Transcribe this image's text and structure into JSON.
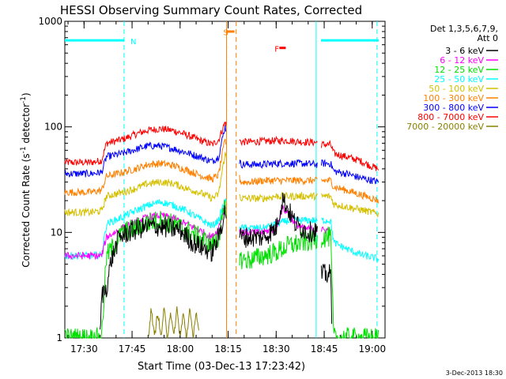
{
  "chart_data": {
    "type": "line",
    "title": "HESSI Observing Summary Count Rates, Corrected",
    "ylabel_main": "Corrected Count Rate (s",
    "ylabel_sup1": "-1",
    "ylabel_mid": " detector",
    "ylabel_sup2": "-1",
    "ylabel_end": ")",
    "xlabel": "Start Time (03-Dec-13 17:23:42)",
    "yscale": "log",
    "ylim": [
      1,
      1000
    ],
    "y_ticks": [
      {
        "v": 1,
        "label": "1"
      },
      {
        "v": 10,
        "label": "10"
      },
      {
        "v": 100,
        "label": "100"
      },
      {
        "v": 1000,
        "label": "1000"
      }
    ],
    "xlim_minutes": [
      1044,
      1144
    ],
    "x_ticks": [
      {
        "min": 1050,
        "label": "17:30"
      },
      {
        "min": 1065,
        "label": "17:45"
      },
      {
        "min": 1080,
        "label": "18:00"
      },
      {
        "min": 1095,
        "label": "18:15"
      },
      {
        "min": 1110,
        "label": "18:30"
      },
      {
        "min": 1125,
        "label": "18:45"
      },
      {
        "min": 1140,
        "label": "19:00"
      }
    ],
    "legend": {
      "header1": "Det 1,3,5,6,7,9,",
      "header2": "Att 0",
      "entries": [
        {
          "label": "3 - 6 keV",
          "color": "#000000"
        },
        {
          "label": "6 - 12 keV",
          "color": "#ff00ff"
        },
        {
          "label": "12 - 25 keV",
          "color": "#00e000"
        },
        {
          "label": "25 - 50 keV",
          "color": "#00ffff"
        },
        {
          "label": "50 - 100 keV",
          "color": "#d4c000"
        },
        {
          "label": "100 - 300 keV",
          "color": "#ff8000"
        },
        {
          "label": "300 - 800 keV",
          "color": "#0000ff"
        },
        {
          "label": "800 - 7000 keV",
          "color": "#ff0000"
        },
        {
          "label": "7000 - 20000 keV",
          "color": "#888000"
        }
      ]
    },
    "annotations": [
      {
        "text": "N",
        "min": 1064.5,
        "y": 650,
        "color": "#00ffff"
      },
      {
        "text": "S",
        "min": 1093.5,
        "y": 790,
        "color": "#ff8000"
      },
      {
        "text": "F",
        "min": 1109.5,
        "y": 550,
        "color": "#ff0000"
      }
    ],
    "orbit_flag": {
      "color": "#00ffff",
      "level": 660,
      "segments": [
        [
          1044,
          1062.5
        ],
        [
          1124,
          1142
        ]
      ],
      "night_bounds_solid": [
        1122.5
      ],
      "night_bounds_dashed": [
        1062.5,
        1141.5
      ]
    },
    "saa_flag": {
      "color": "#ff8000",
      "level": 800,
      "segment": [
        1094.5,
        1097
      ],
      "bounds_solid": [
        1094.5
      ],
      "bounds_dashed": [
        1097.5
      ]
    },
    "flare_flag": {
      "color": "#ff0000",
      "level": 560,
      "segment": [
        1111,
        1113
      ]
    },
    "gaps": [
      [
        1094.5,
        1098.5
      ],
      [
        1123,
        1124
      ]
    ],
    "series": [
      {
        "name": "800 - 7000 keV",
        "color": "#ff0000",
        "points": [
          [
            1044,
            46
          ],
          [
            1052,
            46
          ],
          [
            1054,
            47
          ],
          [
            1055.5,
            48
          ],
          [
            1057,
            70
          ],
          [
            1062,
            76
          ],
          [
            1066,
            85
          ],
          [
            1070,
            93
          ],
          [
            1074,
            96
          ],
          [
            1078,
            92
          ],
          [
            1082,
            84
          ],
          [
            1086,
            75
          ],
          [
            1090,
            68
          ],
          [
            1092,
            75
          ],
          [
            1094,
            110
          ],
          [
            1099,
            72
          ],
          [
            1102,
            72
          ],
          [
            1106,
            73
          ],
          [
            1110,
            74
          ],
          [
            1114,
            74
          ],
          [
            1118,
            72
          ],
          [
            1123,
            71
          ],
          [
            1124,
            68
          ],
          [
            1127,
            68
          ],
          [
            1128,
            56
          ],
          [
            1132,
            52
          ],
          [
            1136,
            48
          ],
          [
            1140,
            42
          ],
          [
            1142,
            40
          ]
        ]
      },
      {
        "name": "300 - 800 keV",
        "color": "#0000ff",
        "points": [
          [
            1044,
            36
          ],
          [
            1052,
            36
          ],
          [
            1055.5,
            37
          ],
          [
            1057,
            52
          ],
          [
            1062,
            56
          ],
          [
            1066,
            61
          ],
          [
            1070,
            66
          ],
          [
            1074,
            66
          ],
          [
            1078,
            62
          ],
          [
            1082,
            57
          ],
          [
            1086,
            52
          ],
          [
            1090,
            47
          ],
          [
            1092,
            52
          ],
          [
            1094,
            100
          ],
          [
            1099,
            44
          ],
          [
            1102,
            44
          ],
          [
            1106,
            44
          ],
          [
            1110,
            45
          ],
          [
            1114,
            45
          ],
          [
            1118,
            45
          ],
          [
            1123,
            44
          ],
          [
            1124,
            45
          ],
          [
            1127,
            45
          ],
          [
            1128,
            38
          ],
          [
            1132,
            36
          ],
          [
            1136,
            33
          ],
          [
            1140,
            31
          ],
          [
            1142,
            30
          ]
        ]
      },
      {
        "name": "100 - 300 keV",
        "color": "#ff8000",
        "points": [
          [
            1044,
            24
          ],
          [
            1052,
            24
          ],
          [
            1055.5,
            25
          ],
          [
            1057,
            34
          ],
          [
            1062,
            37
          ],
          [
            1066,
            40
          ],
          [
            1070,
            44
          ],
          [
            1074,
            45
          ],
          [
            1078,
            43
          ],
          [
            1082,
            39
          ],
          [
            1086,
            35
          ],
          [
            1090,
            32
          ],
          [
            1092,
            35
          ],
          [
            1094,
            75
          ],
          [
            1099,
            30
          ],
          [
            1102,
            30
          ],
          [
            1106,
            31
          ],
          [
            1110,
            31
          ],
          [
            1114,
            31
          ],
          [
            1118,
            31
          ],
          [
            1123,
            31
          ],
          [
            1124,
            31
          ],
          [
            1127,
            31
          ],
          [
            1128,
            27
          ],
          [
            1132,
            25
          ],
          [
            1136,
            23
          ],
          [
            1140,
            21
          ],
          [
            1142,
            20
          ]
        ]
      },
      {
        "name": "50 - 100 keV",
        "color": "#d4c000",
        "points": [
          [
            1044,
            15.5
          ],
          [
            1052,
            15.5
          ],
          [
            1055.5,
            16
          ],
          [
            1057,
            22
          ],
          [
            1062,
            24
          ],
          [
            1066,
            26
          ],
          [
            1070,
            29
          ],
          [
            1074,
            30
          ],
          [
            1078,
            29
          ],
          [
            1082,
            26
          ],
          [
            1086,
            24
          ],
          [
            1090,
            21
          ],
          [
            1092,
            23
          ],
          [
            1094,
            55
          ],
          [
            1099,
            21
          ],
          [
            1102,
            21
          ],
          [
            1106,
            21
          ],
          [
            1110,
            22
          ],
          [
            1114,
            22
          ],
          [
            1118,
            22
          ],
          [
            1123,
            22
          ],
          [
            1124,
            22
          ],
          [
            1127,
            22
          ],
          [
            1128,
            18.5
          ],
          [
            1132,
            17.5
          ],
          [
            1136,
            16.5
          ],
          [
            1140,
            15.5
          ],
          [
            1142,
            15
          ]
        ]
      },
      {
        "name": "25 - 50 keV",
        "color": "#00ffff",
        "points": [
          [
            1044,
            6
          ],
          [
            1052,
            6
          ],
          [
            1055.5,
            6.1
          ],
          [
            1057,
            12
          ],
          [
            1062,
            14
          ],
          [
            1066,
            16
          ],
          [
            1070,
            18
          ],
          [
            1074,
            19.5
          ],
          [
            1078,
            18
          ],
          [
            1082,
            16
          ],
          [
            1086,
            13.5
          ],
          [
            1090,
            11.5
          ],
          [
            1092,
            13
          ],
          [
            1094,
            20
          ],
          [
            1099,
            11
          ],
          [
            1102,
            11
          ],
          [
            1106,
            11
          ],
          [
            1110,
            12
          ],
          [
            1114,
            13
          ],
          [
            1118,
            13
          ],
          [
            1123,
            13
          ],
          [
            1124,
            13
          ],
          [
            1127,
            13
          ],
          [
            1128,
            8
          ],
          [
            1132,
            7
          ],
          [
            1136,
            6.2
          ],
          [
            1140,
            5.8
          ],
          [
            1142,
            5.6
          ]
        ]
      },
      {
        "name": "6 - 12 keV",
        "color": "#ff00ff",
        "points": [
          [
            1044,
            6
          ],
          [
            1052,
            6
          ],
          [
            1055.5,
            6
          ],
          [
            1057,
            9
          ],
          [
            1062,
            11
          ],
          [
            1066,
            12.5
          ],
          [
            1070,
            14
          ],
          [
            1074,
            14.5
          ],
          [
            1078,
            13.5
          ],
          [
            1082,
            12
          ],
          [
            1086,
            10.5
          ],
          [
            1090,
            9
          ],
          [
            1092,
            11
          ],
          [
            1094,
            18
          ],
          [
            1099,
            10
          ],
          [
            1102,
            10
          ],
          [
            1106,
            10
          ],
          [
            1110,
            11
          ],
          [
            1112,
            17
          ],
          [
            1114,
            15
          ],
          [
            1116,
            12
          ],
          [
            1118,
            11
          ],
          [
            1123,
            10.5
          ],
          [
            1124,
            10.5
          ],
          [
            1127,
            10.5
          ]
        ]
      },
      {
        "name": "12 - 25 keV",
        "color": "#00e000",
        "points": [
          [
            1044,
            1
          ],
          [
            1052,
            1
          ],
          [
            1055.5,
            1
          ],
          [
            1057,
            6
          ],
          [
            1060,
            8
          ],
          [
            1062,
            10
          ],
          [
            1066,
            11
          ],
          [
            1070,
            12.5
          ],
          [
            1074,
            13
          ],
          [
            1078,
            12
          ],
          [
            1082,
            10.5
          ],
          [
            1086,
            9
          ],
          [
            1090,
            7.5
          ],
          [
            1092,
            9
          ],
          [
            1094,
            17
          ],
          [
            1099,
            5.5
          ],
          [
            1102,
            5.5
          ],
          [
            1106,
            6
          ],
          [
            1110,
            6.5
          ],
          [
            1114,
            7.5
          ],
          [
            1118,
            8
          ],
          [
            1123,
            8.5
          ],
          [
            1124,
            9
          ],
          [
            1127,
            9
          ],
          [
            1128,
            1
          ],
          [
            1134,
            1
          ],
          [
            1142,
            1
          ]
        ]
      },
      {
        "name": "3 - 6 keV",
        "color": "#000000",
        "points": [
          [
            1055,
            1
          ],
          [
            1055.5,
            2.5
          ],
          [
            1057,
            3
          ],
          [
            1058.5,
            5.5
          ],
          [
            1061,
            9
          ],
          [
            1064,
            10
          ],
          [
            1068,
            11
          ],
          [
            1072,
            11.5
          ],
          [
            1076,
            11
          ],
          [
            1080,
            10.5
          ],
          [
            1084,
            8
          ],
          [
            1088,
            7
          ],
          [
            1090,
            6.5
          ],
          [
            1092,
            9
          ],
          [
            1094,
            16
          ],
          [
            1099,
            9
          ],
          [
            1102,
            9
          ],
          [
            1106,
            9
          ],
          [
            1110,
            11
          ],
          [
            1112,
            21
          ],
          [
            1114,
            16
          ],
          [
            1116,
            12
          ],
          [
            1118,
            11
          ],
          [
            1120,
            10
          ],
          [
            1123,
            10.5
          ],
          [
            1124,
            4
          ],
          [
            1127,
            4
          ],
          [
            1127.5,
            1
          ]
        ]
      },
      {
        "name": "7000 - 20000 keV",
        "color": "#888000",
        "points": [
          [
            1070,
            1
          ],
          [
            1071,
            1.9
          ],
          [
            1072,
            1
          ],
          [
            1073,
            1.8
          ],
          [
            1074,
            1
          ],
          [
            1075,
            1.9
          ],
          [
            1076,
            1
          ],
          [
            1077,
            1.8
          ],
          [
            1078,
            1
          ],
          [
            1079,
            1.9
          ],
          [
            1080,
            1
          ],
          [
            1081,
            1.7
          ],
          [
            1082,
            1
          ],
          [
            1083,
            1.9
          ],
          [
            1084,
            1
          ],
          [
            1085,
            1.8
          ],
          [
            1086,
            1
          ]
        ]
      }
    ],
    "grid": false,
    "legend_position": "right"
  },
  "footer_date": "3-Dec-2013 18:30"
}
